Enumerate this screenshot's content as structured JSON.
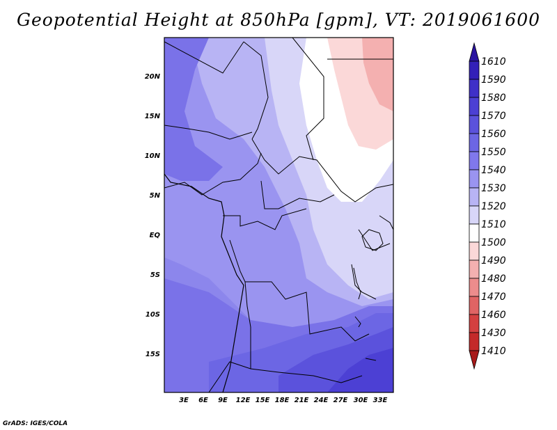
{
  "title": "Geopotential Height at 850hPa [gpm], VT: 2019061600",
  "credit": "GrADS: IGES/COLA",
  "map": {
    "lat_labels": [
      "20N",
      "15N",
      "10N",
      "5N",
      "EQ",
      "5S",
      "10S",
      "15S"
    ],
    "lon_labels": [
      "3E",
      "6E",
      "9E",
      "12E",
      "15E",
      "18E",
      "21E",
      "24E",
      "27E",
      "30E",
      "33E"
    ]
  },
  "colorbar": {
    "levels": [
      "1610",
      "1590",
      "1580",
      "1570",
      "1560",
      "1550",
      "1540",
      "1530",
      "1520",
      "1510",
      "1500",
      "1490",
      "1480",
      "1470",
      "1460",
      "1430",
      "1410"
    ],
    "colors": [
      "#2a14a0",
      "#3320b8",
      "#3f30c8",
      "#4c40d4",
      "#5b52dc",
      "#6c66e4",
      "#8078ec",
      "#9a94f0",
      "#b8b4f4",
      "#d8d6f8",
      "#ffffff",
      "#fbd8d8",
      "#f4b0b0",
      "#ec8c8c",
      "#e06464",
      "#d44040",
      "#c42a2a",
      "#a81a1a"
    ]
  }
}
